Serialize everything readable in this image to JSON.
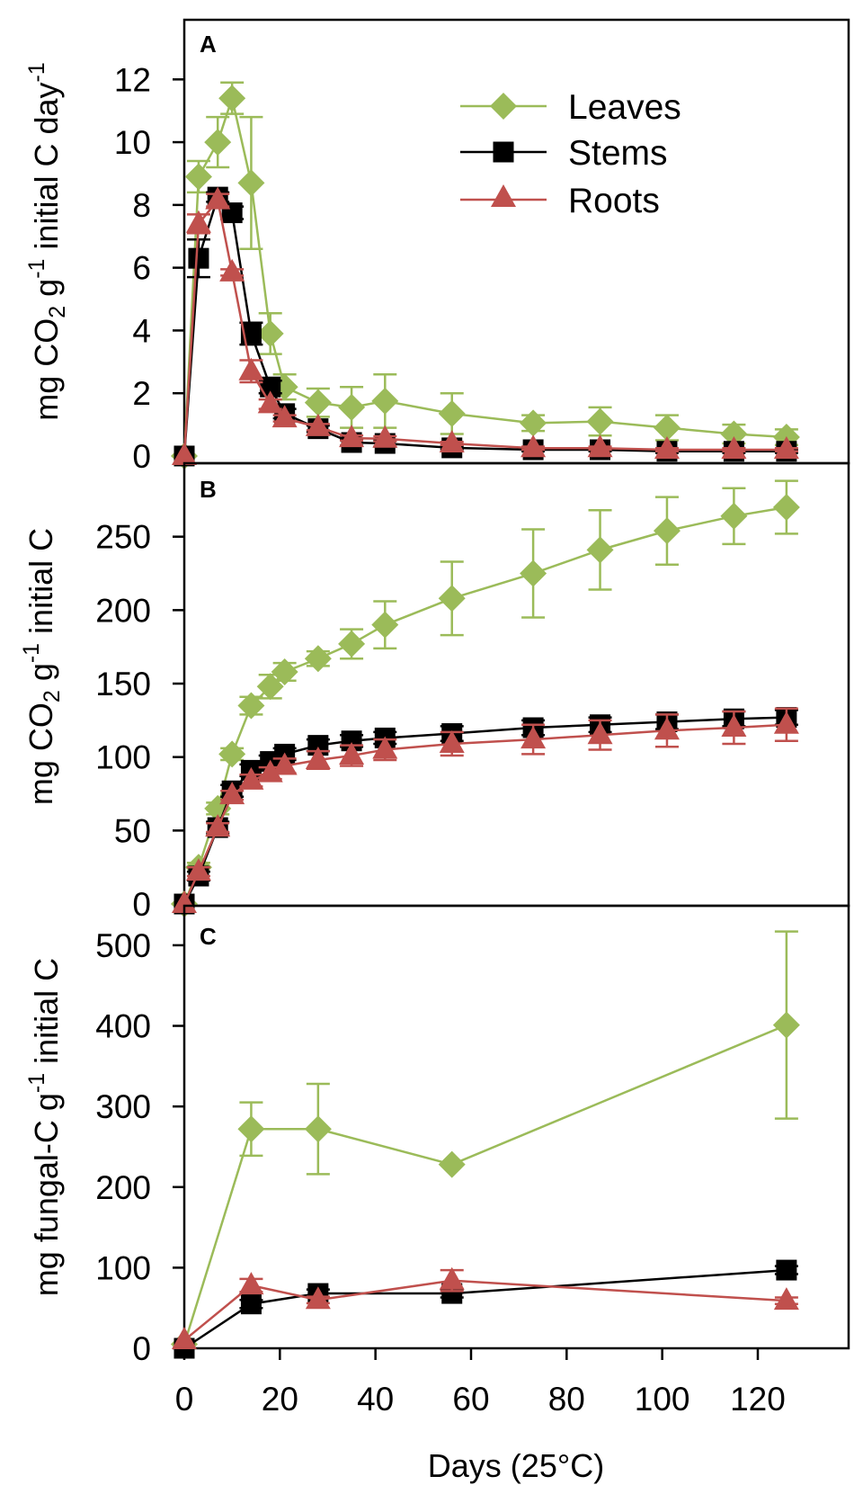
{
  "colors": {
    "Leaves": "#9bbb59",
    "Stems": "#000000",
    "Roots": "#c0504d"
  },
  "legend": {
    "position": "top-center",
    "entries": [
      "Leaves",
      "Stems",
      "Roots"
    ],
    "markers": [
      "diamond",
      "square",
      "triangle"
    ]
  },
  "chart_data": [
    {
      "type": "line",
      "panel": "A",
      "ylabel_parts": [
        {
          "text": "mg CO",
          "style": "normal"
        },
        {
          "text": "2",
          "style": "sub"
        },
        {
          "text": " g",
          "style": "normal"
        },
        {
          "text": "-1",
          "style": "sup"
        },
        {
          "text": " initial C day",
          "style": "normal"
        },
        {
          "text": "-1",
          "style": "sup"
        }
      ],
      "ylim": [
        -0.23,
        13.9
      ],
      "yticks": [
        "0",
        "2",
        "4",
        "6",
        "8",
        "10",
        "12"
      ],
      "xlim": [
        0,
        139
      ],
      "series": [
        {
          "name": "Leaves",
          "x": [
            0,
            3,
            7,
            10,
            14,
            18,
            21,
            28,
            35,
            42,
            56,
            73,
            87,
            101,
            115,
            126
          ],
          "y": [
            0,
            8.9,
            10.0,
            11.4,
            8.7,
            3.9,
            2.2,
            1.7,
            1.55,
            1.75,
            1.35,
            1.05,
            1.1,
            0.9,
            0.7,
            0.6
          ],
          "err": [
            0,
            0.5,
            0.8,
            0.5,
            2.1,
            0.65,
            0.4,
            0.45,
            0.65,
            0.85,
            0.65,
            0.25,
            0.45,
            0.4,
            0.3,
            0.25
          ]
        },
        {
          "name": "Stems",
          "x": [
            0,
            3,
            7,
            10,
            14,
            18,
            21,
            28,
            35,
            42,
            56,
            73,
            87,
            101,
            115,
            126
          ],
          "y": [
            0,
            6.3,
            8.25,
            7.75,
            3.9,
            2.2,
            1.35,
            0.87,
            0.43,
            0.4,
            0.26,
            0.2,
            0.2,
            0.15,
            0.15,
            0.15
          ],
          "err": [
            0,
            0.6,
            0.15,
            0.2,
            0.35,
            0.2,
            0.15,
            0.1,
            0.1,
            0.1,
            0.05,
            0.05,
            0.05,
            0.05,
            0.05,
            0.05
          ]
        },
        {
          "name": "Roots",
          "x": [
            0,
            3,
            7,
            10,
            14,
            18,
            21,
            28,
            35,
            42,
            56,
            73,
            87,
            101,
            115,
            126
          ],
          "y": [
            0,
            7.4,
            8.15,
            5.85,
            2.7,
            1.65,
            1.2,
            0.92,
            0.57,
            0.55,
            0.4,
            0.25,
            0.25,
            0.2,
            0.2,
            0.2
          ],
          "err": [
            0,
            0.3,
            0.2,
            0.1,
            0.35,
            0.15,
            0.1,
            0.1,
            0.08,
            0.08,
            0.05,
            0.05,
            0.05,
            0.05,
            0.05,
            0.05
          ]
        }
      ]
    },
    {
      "type": "line",
      "panel": "B",
      "ylabel_parts": [
        {
          "text": "mg CO",
          "style": "normal"
        },
        {
          "text": "2",
          "style": "sub"
        },
        {
          "text": " g",
          "style": "normal"
        },
        {
          "text": "-1",
          "style": "sup"
        },
        {
          "text": " initial C",
          "style": "normal"
        }
      ],
      "ylim": [
        -1.2,
        300
      ],
      "yticks": [
        "0",
        "50",
        "100",
        "150",
        "200",
        "250"
      ],
      "xlim": [
        0,
        139
      ],
      "series": [
        {
          "name": "Leaves",
          "x": [
            0,
            3,
            7,
            10,
            14,
            18,
            21,
            28,
            35,
            42,
            56,
            73,
            87,
            101,
            115,
            126
          ],
          "y": [
            0,
            25,
            65,
            102,
            135,
            148,
            158,
            167,
            177,
            190,
            208,
            225,
            241,
            254,
            264,
            270
          ],
          "err": [
            0,
            3,
            4,
            4,
            6,
            8,
            6,
            5,
            10,
            16,
            25,
            30,
            27,
            23,
            19,
            18
          ]
        },
        {
          "name": "Stems",
          "x": [
            0,
            3,
            7,
            10,
            14,
            18,
            21,
            28,
            35,
            42,
            56,
            73,
            87,
            101,
            115,
            126
          ],
          "y": [
            0,
            19,
            52,
            77,
            91,
            97,
            102,
            108,
            111,
            113,
            116,
            120,
            122,
            124,
            126,
            127
          ],
          "err": [
            0,
            3,
            4,
            4,
            4,
            4,
            4,
            4,
            4,
            4,
            5,
            5,
            5,
            5,
            5,
            5
          ]
        },
        {
          "name": "Roots",
          "x": [
            0,
            3,
            7,
            10,
            14,
            18,
            21,
            28,
            35,
            42,
            56,
            73,
            87,
            101,
            115,
            126
          ],
          "y": [
            0,
            22,
            52,
            74,
            84,
            89,
            94,
            98,
            101,
            105,
            109,
            112,
            115,
            118,
            120,
            122
          ],
          "err": [
            0,
            3,
            3,
            3,
            4,
            4,
            5,
            6,
            7,
            7,
            8,
            10,
            10,
            11,
            11,
            11
          ]
        }
      ]
    },
    {
      "type": "line",
      "panel": "C",
      "ylabel_parts": [
        {
          "text": "mg fungal-C g",
          "style": "normal"
        },
        {
          "text": "-1",
          "style": "sup"
        },
        {
          "text": " initial C",
          "style": "normal"
        }
      ],
      "ylim": [
        0,
        549
      ],
      "yticks": [
        "0",
        "100",
        "200",
        "300",
        "400",
        "500"
      ],
      "xlim": [
        0,
        139
      ],
      "xticks": [
        "0",
        "20",
        "40",
        "60",
        "80",
        "100",
        "120"
      ],
      "xlabel": "Days (25°C)",
      "series": [
        {
          "name": "Leaves",
          "x": [
            0,
            14,
            28,
            56,
            126
          ],
          "y": [
            5,
            272,
            272,
            228,
            401
          ],
          "err": [
            0,
            33,
            56,
            0,
            116
          ]
        },
        {
          "name": "Stems",
          "x": [
            0,
            14,
            28,
            56,
            126
          ],
          "y": [
            0,
            55,
            68,
            68,
            97
          ],
          "err": [
            0,
            5,
            5,
            5,
            5
          ]
        },
        {
          "name": "Roots",
          "x": [
            0,
            14,
            28,
            56,
            126
          ],
          "y": [
            10,
            78,
            60,
            84,
            59
          ],
          "err": [
            0,
            8,
            4,
            13,
            4
          ]
        }
      ]
    }
  ]
}
